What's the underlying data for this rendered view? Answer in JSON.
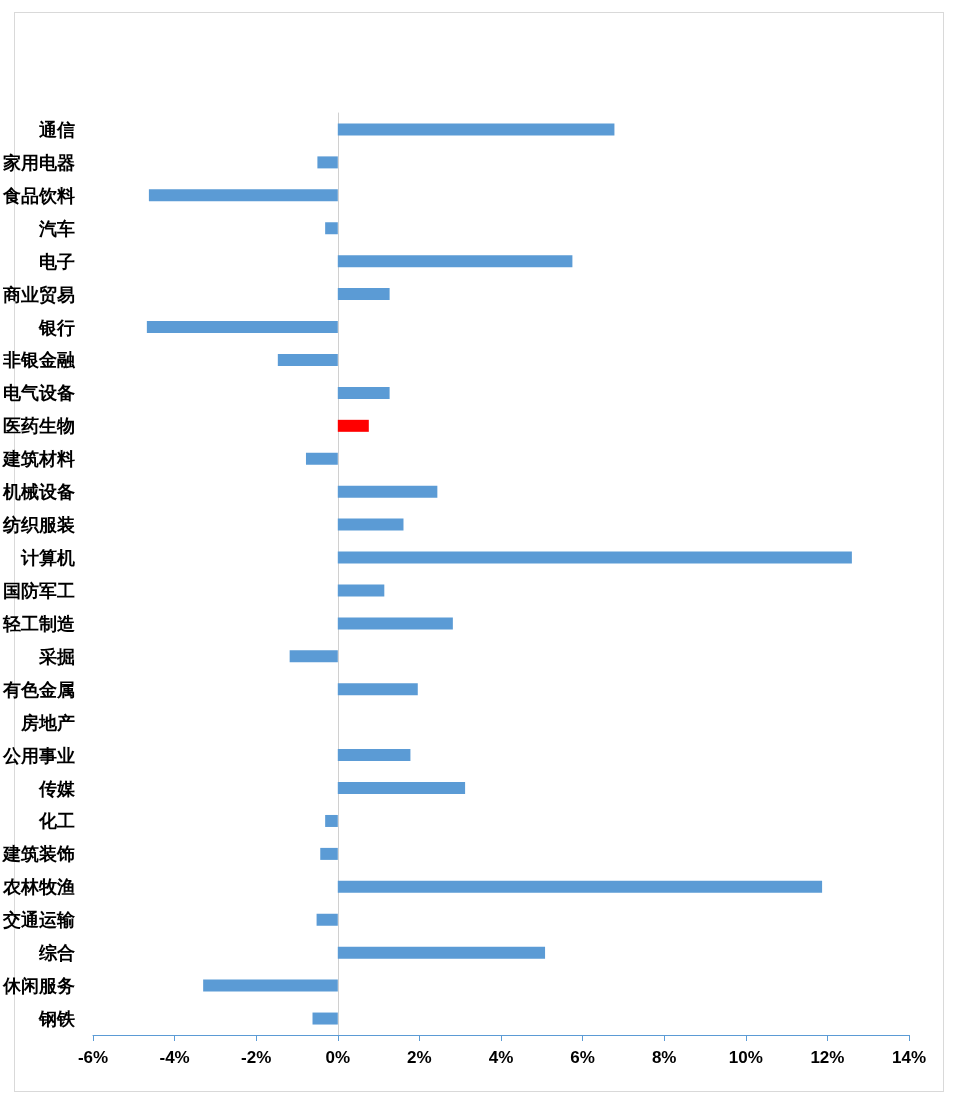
{
  "chart_data": {
    "type": "bar",
    "orientation": "horizontal",
    "categories": [
      "通信",
      "家用电器",
      "食品饮料",
      "汽车",
      "电子",
      "商业贸易",
      "银行",
      "非银金融",
      "电气设备",
      "医药生物",
      "建筑材料",
      "机械设备",
      "纺织服装",
      "计算机",
      "国防军工",
      "轻工制造",
      "采掘",
      "有色金属",
      "房地产",
      "公用事业",
      "传媒",
      "化工",
      "建筑装饰",
      "农林牧渔",
      "交通运输",
      "综合",
      "休闲服务",
      "钢铁"
    ],
    "values": [
      6.78,
      -0.5,
      -4.63,
      -0.31,
      5.75,
      1.27,
      -4.68,
      -1.47,
      1.27,
      0.76,
      -0.78,
      2.44,
      1.61,
      12.6,
      1.14,
      2.82,
      -1.18,
      1.96,
      0,
      1.78,
      3.12,
      -0.31,
      -0.43,
      11.87,
      -0.52,
      5.08,
      -3.3,
      -0.62
    ],
    "colors": [
      "#5b9bd5",
      "#5b9bd5",
      "#5b9bd5",
      "#5b9bd5",
      "#5b9bd5",
      "#5b9bd5",
      "#5b9bd5",
      "#5b9bd5",
      "#5b9bd5",
      "#ff0000",
      "#5b9bd5",
      "#5b9bd5",
      "#5b9bd5",
      "#5b9bd5",
      "#5b9bd5",
      "#5b9bd5",
      "#5b9bd5",
      "#5b9bd5",
      "#5b9bd5",
      "#5b9bd5",
      "#5b9bd5",
      "#5b9bd5",
      "#5b9bd5",
      "#5b9bd5",
      "#5b9bd5",
      "#5b9bd5",
      "#5b9bd5",
      "#5b9bd5"
    ],
    "xlim": [
      -6,
      14
    ],
    "xticks": [
      {
        "value": -6,
        "label": "-6%"
      },
      {
        "value": -4,
        "label": "-4%"
      },
      {
        "value": -2,
        "label": "-2%"
      },
      {
        "value": 0,
        "label": "0%"
      },
      {
        "value": 2,
        "label": "2%"
      },
      {
        "value": 4,
        "label": "4%"
      },
      {
        "value": 6,
        "label": "6%"
      },
      {
        "value": 8,
        "label": "8%"
      },
      {
        "value": 10,
        "label": "10%"
      },
      {
        "value": 12,
        "label": "12%"
      },
      {
        "value": 14,
        "label": "14%"
      }
    ],
    "data_labels": false
  }
}
